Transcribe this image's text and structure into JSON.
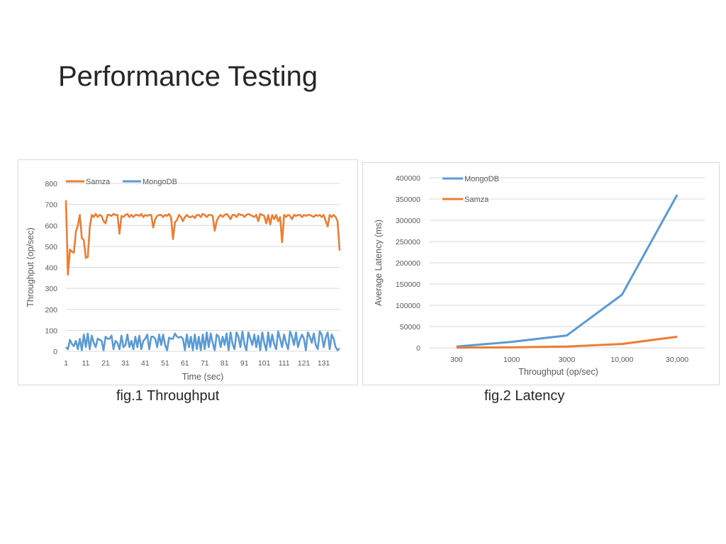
{
  "slide": {
    "title": "Performance Testing",
    "caption1": "fig.1 Throughput",
    "caption2": "fig.2 Latency"
  },
  "colors": {
    "samza": "#ed7d31",
    "mongodb": "#5b9bd5",
    "grid": "#d9d9d9",
    "text": "#595959"
  },
  "chart_data": [
    {
      "type": "line",
      "title": "",
      "xlabel": "Time (sec)",
      "ylabel": "Throughput (op/sec)",
      "ylim": [
        0,
        800
      ],
      "yticks": [
        0,
        100,
        200,
        300,
        400,
        500,
        600,
        700,
        800
      ],
      "xticks": [
        1,
        11,
        21,
        31,
        41,
        51,
        61,
        71,
        81,
        91,
        101,
        111,
        121,
        131
      ],
      "xlim": [
        1,
        139
      ],
      "grid": true,
      "legend_placement": "top-left",
      "series": [
        {
          "name": "Samza",
          "color": "#ed7d31",
          "x": [
            1,
            2,
            3,
            4,
            5,
            6,
            7,
            8,
            9,
            10,
            11,
            12,
            13,
            14,
            15,
            16,
            17,
            18,
            19,
            20,
            21,
            22,
            23,
            24,
            25,
            26,
            27,
            28,
            29,
            30,
            31,
            32,
            33,
            34,
            35,
            36,
            37,
            38,
            39,
            40,
            41,
            42,
            43,
            44,
            45,
            46,
            47,
            48,
            49,
            50,
            51,
            52,
            53,
            54,
            55,
            56,
            57,
            58,
            59,
            60,
            61,
            62,
            63,
            64,
            65,
            66,
            67,
            68,
            69,
            70,
            71,
            72,
            73,
            74,
            75,
            76,
            77,
            78,
            79,
            80,
            81,
            82,
            83,
            84,
            85,
            86,
            87,
            88,
            89,
            90,
            91,
            92,
            93,
            94,
            95,
            96,
            97,
            98,
            99,
            100,
            101,
            102,
            103,
            104,
            105,
            106,
            107,
            108,
            109,
            110,
            111,
            112,
            113,
            114,
            115,
            116,
            117,
            118,
            119,
            120,
            121,
            122,
            123,
            124,
            125,
            126,
            127,
            128,
            129,
            130,
            131,
            132,
            133,
            134,
            135,
            136,
            137,
            138,
            139
          ],
          "values": [
            720,
            365,
            485,
            475,
            470,
            570,
            600,
            650,
            540,
            530,
            445,
            450,
            590,
            650,
            640,
            655,
            640,
            650,
            645,
            620,
            610,
            650,
            650,
            645,
            655,
            650,
            650,
            560,
            645,
            640,
            650,
            655,
            640,
            650,
            640,
            650,
            650,
            645,
            655,
            640,
            650,
            645,
            650,
            650,
            590,
            630,
            645,
            650,
            650,
            640,
            650,
            645,
            655,
            640,
            535,
            615,
            625,
            650,
            640,
            620,
            640,
            650,
            640,
            640,
            645,
            635,
            650,
            650,
            640,
            655,
            650,
            640,
            650,
            650,
            645,
            575,
            620,
            640,
            650,
            640,
            650,
            655,
            645,
            630,
            650,
            650,
            640,
            655,
            650,
            650,
            640,
            650,
            655,
            650,
            645,
            640,
            650,
            620,
            655,
            650,
            645,
            610,
            650,
            605,
            650,
            630,
            650,
            620,
            640,
            520,
            650,
            640,
            650,
            645,
            630,
            650,
            645,
            650,
            650,
            640,
            650,
            645,
            650,
            650,
            645,
            640,
            650,
            645,
            650,
            640,
            650,
            620,
            595,
            650,
            640,
            650,
            640,
            620,
            480
          ]
        },
        {
          "name": "MongoDB",
          "color": "#5b9bd5",
          "x": [
            1,
            2,
            3,
            4,
            5,
            6,
            7,
            8,
            9,
            10,
            11,
            12,
            13,
            14,
            15,
            16,
            17,
            18,
            19,
            20,
            21,
            22,
            23,
            24,
            25,
            26,
            27,
            28,
            29,
            30,
            31,
            32,
            33,
            34,
            35,
            36,
            37,
            38,
            39,
            40,
            41,
            42,
            43,
            44,
            45,
            46,
            47,
            48,
            49,
            50,
            51,
            52,
            53,
            54,
            55,
            56,
            57,
            58,
            59,
            60,
            61,
            62,
            63,
            64,
            65,
            66,
            67,
            68,
            69,
            70,
            71,
            72,
            73,
            74,
            75,
            76,
            77,
            78,
            79,
            80,
            81,
            82,
            83,
            84,
            85,
            86,
            87,
            88,
            89,
            90,
            91,
            92,
            93,
            94,
            95,
            96,
            97,
            98,
            99,
            100,
            101,
            102,
            103,
            104,
            105,
            106,
            107,
            108,
            109,
            110,
            111,
            112,
            113,
            114,
            115,
            116,
            117,
            118,
            119,
            120,
            121,
            122,
            123,
            124,
            125,
            126,
            127,
            128,
            129,
            130,
            131,
            132,
            133,
            134,
            135,
            136,
            137,
            138,
            139
          ],
          "values": [
            20,
            10,
            55,
            35,
            25,
            50,
            10,
            60,
            5,
            80,
            20,
            85,
            10,
            75,
            40,
            20,
            60,
            55,
            50,
            5,
            70,
            60,
            60,
            75,
            10,
            50,
            40,
            10,
            75,
            20,
            30,
            80,
            20,
            50,
            10,
            70,
            20,
            75,
            10,
            50,
            60,
            80,
            10,
            70,
            70,
            60,
            20,
            80,
            30,
            80,
            30,
            5,
            65,
            60,
            60,
            85,
            70,
            65,
            70,
            60,
            5,
            80,
            20,
            70,
            5,
            80,
            10,
            70,
            5,
            80,
            10,
            90,
            20,
            85,
            40,
            5,
            80,
            70,
            20,
            70,
            30,
            85,
            5,
            90,
            35,
            10,
            90,
            70,
            20,
            95,
            35,
            5,
            90,
            60,
            30,
            80,
            20,
            75,
            5,
            90,
            40,
            5,
            90,
            20,
            80,
            35,
            10,
            95,
            60,
            20,
            80,
            40,
            10,
            95,
            70,
            30,
            90,
            20,
            55,
            80,
            60,
            5,
            90,
            70,
            40,
            85,
            30,
            10,
            95,
            80,
            20,
            65,
            90,
            10,
            80,
            60,
            20,
            5,
            15
          ]
        }
      ]
    },
    {
      "type": "line",
      "title": "",
      "xlabel": "Throughput (op/sec)",
      "ylabel": "Average Latency (ms)",
      "categories": [
        "300",
        "1000",
        "3000",
        "10,000",
        "30,000"
      ],
      "ylim": [
        0,
        400000
      ],
      "yticks": [
        0,
        50000,
        100000,
        150000,
        200000,
        250000,
        300000,
        350000,
        400000
      ],
      "grid": true,
      "legend_placement": "top-left",
      "series": [
        {
          "name": "MongoDB",
          "color": "#5b9bd5",
          "values": [
            3000,
            14000,
            29000,
            125000,
            360000
          ]
        },
        {
          "name": "Samza",
          "color": "#ed7d31",
          "values": [
            500,
            1000,
            3000,
            9000,
            26000
          ]
        }
      ]
    }
  ]
}
